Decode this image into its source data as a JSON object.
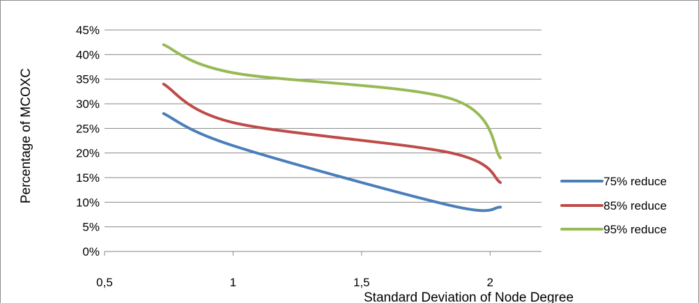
{
  "chart_data": {
    "type": "line",
    "title": "",
    "xlabel": "Standard Deviation of Node Degree",
    "ylabel": "Percentage of MCOXC",
    "xlim": [
      0.5,
      2.2
    ],
    "ylim": [
      0,
      45
    ],
    "x_ticks": [
      0.5,
      1,
      1.5,
      2
    ],
    "x_tick_labels": [
      "0,5",
      "1",
      "1,5",
      "2"
    ],
    "y_ticks": [
      0,
      5,
      10,
      15,
      20,
      25,
      30,
      35,
      40,
      45
    ],
    "y_tick_labels": [
      "0%",
      "5%",
      "10%",
      "15%",
      "20%",
      "25%",
      "30%",
      "35%",
      "40%",
      "45%"
    ],
    "grid": "horizontal",
    "legend_position": "right",
    "x": [
      0.73,
      1.0,
      1.85,
      2.04
    ],
    "series": [
      {
        "name": "75% reduce",
        "color": "#4a7ebb",
        "values": [
          28,
          21.5,
          9.3,
          9
        ]
      },
      {
        "name": "85% reduce",
        "color": "#be4b48",
        "values": [
          34,
          26.2,
          20,
          14
        ]
      },
      {
        "name": "95% reduce",
        "color": "#98b954",
        "values": [
          42,
          36.3,
          31,
          19
        ]
      }
    ]
  }
}
